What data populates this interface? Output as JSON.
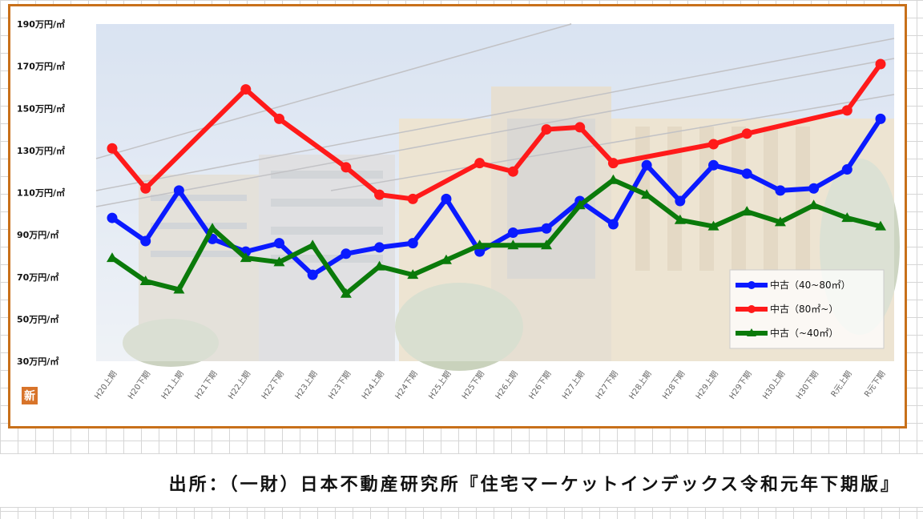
{
  "chart_data": {
    "type": "line",
    "title": "",
    "xlabel": "",
    "ylabel": "",
    "y_unit": "万円/㎡",
    "y_ticks": [
      30,
      50,
      70,
      90,
      110,
      130,
      150,
      170,
      190
    ],
    "y_tick_labels": [
      "30万円/㎡",
      "50万円/㎡",
      "70万円/㎡",
      "90万円/㎡",
      "110万円/㎡",
      "130万円/㎡",
      "150万円/㎡",
      "170万円/㎡",
      "190万円/㎡"
    ],
    "ylim": [
      30,
      190
    ],
    "categories": [
      "H20上期",
      "H20下期",
      "H21上期",
      "H21下期",
      "H22上期",
      "H22下期",
      "H23上期",
      "H23下期",
      "H24上期",
      "H24下期",
      "H25上期",
      "H25下期",
      "H26上期",
      "H26下期",
      "H27上期",
      "H27下期",
      "H28上期",
      "H28下期",
      "H29上期",
      "H29下期",
      "H30上期",
      "H30下期",
      "R元上期",
      "R元下期"
    ],
    "series": [
      {
        "name": "中古（40~80㎡）",
        "color": "#0a1aff",
        "marker": "circle",
        "values": [
          98,
          87,
          111,
          88,
          82,
          86,
          71,
          81,
          84,
          86,
          107,
          82,
          91,
          93,
          106,
          95,
          123,
          106,
          123,
          119,
          111,
          112,
          121,
          145
        ]
      },
      {
        "name": "中古（80㎡~）",
        "color": "#ff1a1a",
        "marker": "circle",
        "values": [
          131,
          112,
          null,
          null,
          159,
          145,
          null,
          122,
          109,
          107,
          null,
          124,
          120,
          140,
          141,
          124,
          null,
          null,
          133,
          138,
          null,
          null,
          149,
          171
        ]
      },
      {
        "name": "中古（~40㎡）",
        "color": "#0a7a0a",
        "marker": "triangle",
        "values": [
          79,
          68,
          64,
          93,
          79,
          77,
          85,
          62,
          75,
          71,
          78,
          85,
          85,
          85,
          104,
          116,
          109,
          97,
          94,
          101,
          96,
          104,
          98,
          94
        ]
      }
    ],
    "legend_position": "bottom-right",
    "grid": false,
    "logo_text": "新"
  },
  "source_note": "出所：（一財）日本不動産研究所『住宅マーケットインデックス令和元年下期版』"
}
